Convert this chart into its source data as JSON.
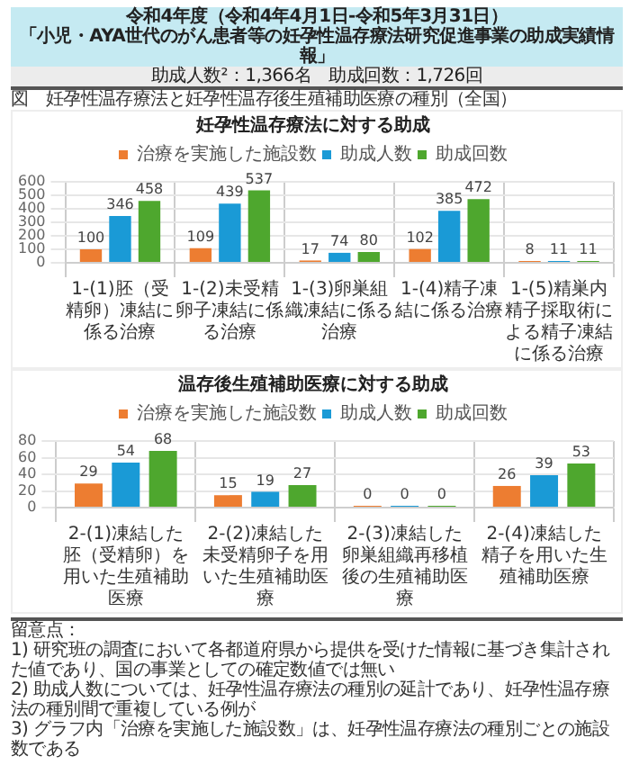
{
  "chart_data": [
    {
      "type": "bar",
      "title": "妊孕性温存療法に対する助成",
      "annotations": [
        "令和4年度（令和4年4月1日-令和5年3月31日）",
        "「小児・AYA世代のがん患者等の妊孕性温存療法研究促進事業の助成実績情報」",
        "助成人数²：1,366名　助成回数：1,726回",
        "図　妊孕性温存療法と妊孕性温存後生殖補助医療の種別（全国）"
      ],
      "categories": [
        "1-(1)胚（受精卵）凍結に係る治療",
        "1-(2)未受精卵子凍結に係る治療",
        "1-(3)卵巣組織凍結に係る治療",
        "1-(4)精子凍結に係る治療",
        "1-(5)精巣内精子採取術による精子凍結に係る治療"
      ],
      "series": [
        {
          "name": "治療を実施した施設数",
          "color": "#ed7d31",
          "values": [
            100,
            109,
            17,
            102,
            8
          ]
        },
        {
          "name": "助成人数",
          "color": "#1a9ad6",
          "values": [
            346,
            439,
            74,
            385,
            11
          ]
        },
        {
          "name": "助成回数",
          "color": "#4ea72e",
          "values": [
            458,
            537,
            80,
            472,
            11
          ]
        }
      ],
      "ylim": [
        0,
        600
      ],
      "yticks": [
        0,
        100,
        200,
        300,
        400,
        500,
        600
      ],
      "grid": true,
      "legend": "top",
      "data_labels": true
    },
    {
      "type": "bar",
      "title": "温存後生殖補助医療に対する助成",
      "annotations": [
        "留意点：",
        "1) 研究班の調査において各都道府県から提供を受けた情報に基づき集計された値であり、国の事業としての確定数値では無い",
        "2) 助成人数については、妊孕性温存療法の種別の延計であり、妊孕性温存療法の種別間で重複している例が",
        "3) グラフ内「治療を実施した施設数」は、妊孕性温存療法の種別ごとの施設数である"
      ],
      "categories": [
        "2-(1)凍結した胚（受精卵）を用いた生殖補助医療",
        "2-(2)凍結した未受精卵子を用いた生殖補助医療",
        "2-(3)凍結した卵巣組織再移植後の生殖補助医療",
        "2-(4)凍結した精子を用いた生殖補助医療"
      ],
      "series": [
        {
          "name": "治療を実施した施設数",
          "color": "#ed7d31",
          "values": [
            29,
            15,
            0,
            26
          ]
        },
        {
          "name": "助成人数",
          "color": "#1a9ad6",
          "values": [
            54,
            19,
            0,
            39
          ]
        },
        {
          "name": "助成回数",
          "color": "#4ea72e",
          "values": [
            68,
            27,
            0,
            53
          ]
        }
      ],
      "ylim": [
        0,
        80
      ],
      "yticks": [
        0,
        20,
        40,
        60,
        80
      ],
      "grid": true,
      "legend": "top",
      "data_labels": true
    }
  ]
}
